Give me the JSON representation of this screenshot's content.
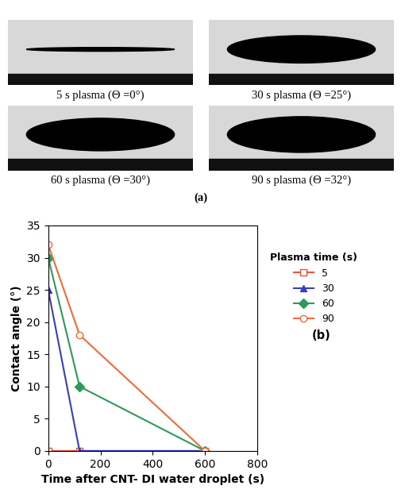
{
  "images": {
    "label": "(a)",
    "captions": [
      "5 s plasma (Θ =0°)",
      "30 s plasma (Θ =25°)",
      "60 s plasma (Θ =30°)",
      "90 s plasma (Θ =32°)"
    ]
  },
  "chart_data": {
    "type": "line",
    "panel_label": "(b)",
    "x_label": "Time after CNT- DI water droplet (s)",
    "y_label": "Contact angle (°)",
    "legend_title": "Plasma time (s)",
    "legend": "center left",
    "xlim": [
      0,
      800
    ],
    "xticks": [
      0,
      200,
      400,
      600,
      800
    ],
    "ylim": [
      0,
      35
    ],
    "yticks": [
      0,
      5,
      10,
      15,
      20,
      25,
      30,
      35
    ],
    "x": [
      0,
      120,
      600
    ],
    "series": [
      {
        "name": "5",
        "color": "#e8553a",
        "marker": "square",
        "values": [
          0,
          0,
          0
        ]
      },
      {
        "name": "30",
        "color": "#3b3bbf",
        "marker": "triangle",
        "values": [
          25,
          0,
          0
        ]
      },
      {
        "name": "60",
        "color": "#2e9a5a",
        "marker": "diamond",
        "values": [
          30,
          10,
          0
        ]
      },
      {
        "name": "90",
        "color": "#f26b3a",
        "marker": "circle",
        "values": [
          32,
          18,
          0
        ]
      }
    ]
  }
}
